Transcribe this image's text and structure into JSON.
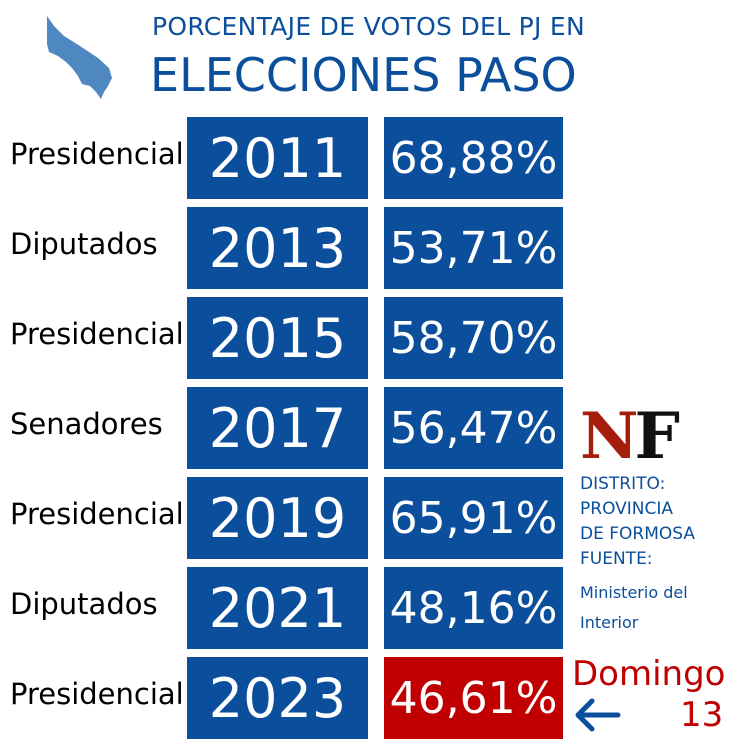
{
  "header": {
    "line1": "PORCENTAJE DE VOTOS DEL PJ EN",
    "line2": "ELECCIONES PASO"
  },
  "colors": {
    "blue": "#0b4f9c",
    "highlight": "#c00000",
    "map": "#4f87c0"
  },
  "chart_data": {
    "type": "table",
    "rows": [
      {
        "label": "Presidencial",
        "year": "2011",
        "value": "68,88%"
      },
      {
        "label": "Diputados",
        "year": "2013",
        "value": "53,71%"
      },
      {
        "label": "Presidencial",
        "year": "2015",
        "value": "58,70%"
      },
      {
        "label": "Senadores",
        "year": "2017",
        "value": "56,47%"
      },
      {
        "label": "Presidencial",
        "year": "2019",
        "value": "65,91%"
      },
      {
        "label": "Diputados",
        "year": "2021",
        "value": "48,16%"
      },
      {
        "label": "Presidencial",
        "year": "2023",
        "value": "46,61%",
        "highlighted": true
      }
    ]
  },
  "logo": {
    "text": "NF"
  },
  "side": {
    "district_label": "DISTRITO:",
    "district_1": "PROVINCIA",
    "district_2": "DE FORMOSA",
    "source_label": "FUENTE:",
    "source_1": "Ministerio del",
    "source_2": "Interior",
    "date_1": "Domingo",
    "date_2": "13"
  }
}
